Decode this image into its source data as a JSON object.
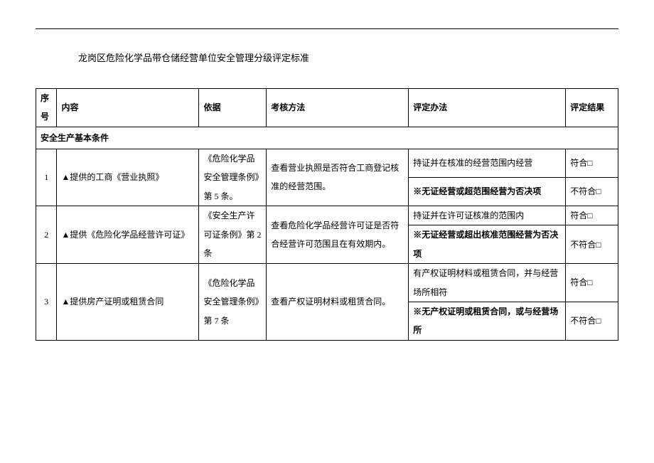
{
  "title": "龙岗区危险化学品带仓储经营单位安全管理分级评定标准",
  "headers": {
    "seq": "序号",
    "content": "内容",
    "basis": "依据",
    "method": "考核方法",
    "evaluation": "评定办法",
    "result": "评定结果"
  },
  "section": "安全生产基本条件",
  "rows": [
    {
      "seq": "1",
      "content": "▲提供的工商《营业执照》",
      "basis": "《危险化学品安全管理条例》第 5 条。",
      "method": "查看营业执照是否符合工商登记核准的经营范围。",
      "eval1": "持证并在核准的经营范围内经营",
      "res1": "符合□",
      "eval2": "※无证经营或超范围经营为否决项",
      "res2": "不符合□"
    },
    {
      "seq": "2",
      "content": "▲提供《危险化学品经营许可证》",
      "basis": "《安全生产许可证条例》第 2 条",
      "method": "查看危险化学品经营许可证是否符合经营许可范围且在有效期内。",
      "eval1": "持证并在许可证核准的范围内",
      "res1": "符合□",
      "eval2": "※无证经营或超出核准范围经营为否决项",
      "res2": "不符合□"
    },
    {
      "seq": "3",
      "content": "▲提供房产证明或租赁合同",
      "basis": "《危险化学品安全管理条例》第 7 条",
      "method": "查看产权证明材料或租赁合同。",
      "eval1": "有产权证明材料或租赁合同，并与经营场所相符",
      "res1": "符合□",
      "eval2": "※无产权证明或租赁合同，或与经营场所",
      "res2": "不符合□"
    }
  ]
}
